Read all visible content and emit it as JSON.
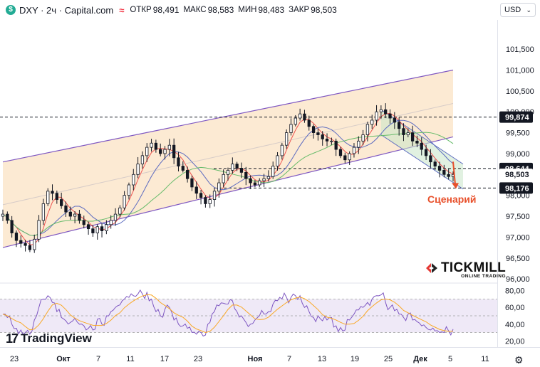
{
  "header": {
    "symbol": "DXY",
    "timeframe": "2ч",
    "source": "Capital.com",
    "title": "DXY · 2ч · Capital.com",
    "open_label": "ОТКР",
    "open_value": "98,491",
    "high_label": "МАКС",
    "high_value": "98,583",
    "low_label": "МИН",
    "low_value": "98,483",
    "close_label": "ЗАКР",
    "close_value": "98,503"
  },
  "currency_button": {
    "label": "USD"
  },
  "annotation": {
    "scenario_text": "Сценарий"
  },
  "branding": {
    "tradingview": "TradingView",
    "broker": "TICKMILL",
    "broker_sub": "ONLINE TRADING"
  },
  "colors": {
    "up_candle": "#131722",
    "down_candle": "#131722",
    "channel_fill": "#fbe3c4",
    "channel_line": "#7e57c2",
    "ma_fast": "#ef5350",
    "ma_mid": "#5c6bc0",
    "ma_slow": "#66bb6a",
    "rsi_line": "#7e57c2",
    "rsi_signal": "#f9a825",
    "rsi_band": "#ede7f6",
    "arrow": "#e8502b",
    "falling_channel_fill": "#c8e6c9",
    "falling_channel_line": "#5c6bc0"
  },
  "chart_data": [
    {
      "type": "candlestick",
      "y_axis": {
        "ticks": [
          "101,500",
          "101,000",
          "100,500",
          "100,000",
          "99,500",
          "99,000",
          "98,500",
          "98,000",
          "97,500",
          "97,000",
          "96,500",
          "96,000"
        ],
        "ylim": [
          95.9,
          102.2
        ]
      },
      "price_labels": [
        {
          "value": "99,874",
          "style": "dark"
        },
        {
          "value": "98,644",
          "style": "dark"
        },
        {
          "value": "98,503",
          "style": "light"
        },
        {
          "value": "98,176",
          "style": "dark"
        }
      ],
      "horizontal_levels": [
        99.874,
        98.644,
        98.176
      ],
      "x_axis": {
        "ticks": [
          "23",
          "Окт",
          "7",
          "11",
          "17",
          "23",
          "Ноя",
          "7",
          "13",
          "19",
          "25",
          "Дек",
          "5",
          "11"
        ]
      },
      "series": [
        {
          "name": "DXY",
          "close": [
            97.55,
            97.4,
            97.1,
            96.92,
            96.85,
            96.8,
            96.7,
            96.95,
            97.4,
            97.8,
            98.1,
            98.05,
            97.9,
            97.75,
            97.6,
            97.5,
            97.55,
            97.4,
            97.3,
            97.2,
            97.1,
            97.25,
            97.15,
            97.3,
            97.4,
            97.55,
            97.7,
            98.0,
            98.25,
            98.5,
            98.75,
            98.95,
            99.15,
            99.25,
            99.1,
            99.0,
            99.1,
            99.2,
            98.9,
            98.7,
            98.6,
            98.4,
            98.2,
            98.05,
            97.95,
            97.8,
            97.9,
            98.1,
            98.3,
            98.5,
            98.6,
            98.75,
            98.65,
            98.55,
            98.4,
            98.3,
            98.25,
            98.35,
            98.4,
            98.45,
            98.7,
            98.95,
            99.2,
            99.5,
            99.7,
            99.85,
            99.95,
            99.8,
            99.65,
            99.5,
            99.45,
            99.35,
            99.3,
            99.3,
            99.1,
            98.95,
            98.85,
            99.0,
            99.15,
            99.3,
            99.45,
            99.7,
            99.8,
            100.0,
            100.05,
            99.95,
            99.85,
            99.75,
            99.6,
            99.45,
            99.5,
            99.3,
            99.25,
            99.1,
            98.95,
            98.8,
            98.7,
            98.6,
            98.5,
            98.45,
            98.5
          ]
        }
      ],
      "moving_averages": [
        "ma_fast",
        "ma_mid",
        "ma_slow"
      ],
      "ascending_channel": {
        "upper": [
          [
            0,
            98.8
          ],
          [
            100,
            101.0
          ]
        ],
        "lower": [
          [
            0,
            96.75
          ],
          [
            100,
            99.4
          ]
        ]
      },
      "falling_channel": {
        "upper": [
          [
            84,
            100.05
          ],
          [
            100,
            98.75
          ]
        ],
        "lower": [
          [
            84,
            99.45
          ],
          [
            100,
            98.15
          ]
        ]
      }
    },
    {
      "type": "line",
      "name": "RSI",
      "y_axis": {
        "ticks": [
          "80,00",
          "60,00",
          "40,00",
          "20,00"
        ],
        "ylim": [
          16,
          84
        ]
      },
      "levels": [
        70,
        30
      ],
      "series": [
        {
          "name": "RSI",
          "values": [
            52,
            48,
            40,
            35,
            33,
            30,
            28,
            45,
            60,
            70,
            74,
            66,
            55,
            48,
            44,
            42,
            47,
            40,
            38,
            35,
            33,
            46,
            40,
            50,
            55,
            60,
            63,
            70,
            72,
            74,
            76,
            76,
            78,
            70,
            55,
            50,
            58,
            60,
            45,
            40,
            38,
            35,
            30,
            28,
            30,
            27,
            42,
            55,
            62,
            65,
            64,
            68,
            55,
            50,
            42,
            40,
            45,
            50,
            52,
            55,
            64,
            68,
            70,
            72,
            72,
            74,
            74,
            60,
            55,
            48,
            50,
            44,
            45,
            48,
            38,
            36,
            33,
            45,
            52,
            57,
            60,
            66,
            70,
            74,
            75,
            66,
            60,
            56,
            52,
            48,
            52,
            45,
            43,
            38,
            36,
            33,
            32,
            30,
            30,
            32,
            34
          ]
        }
      ]
    }
  ]
}
